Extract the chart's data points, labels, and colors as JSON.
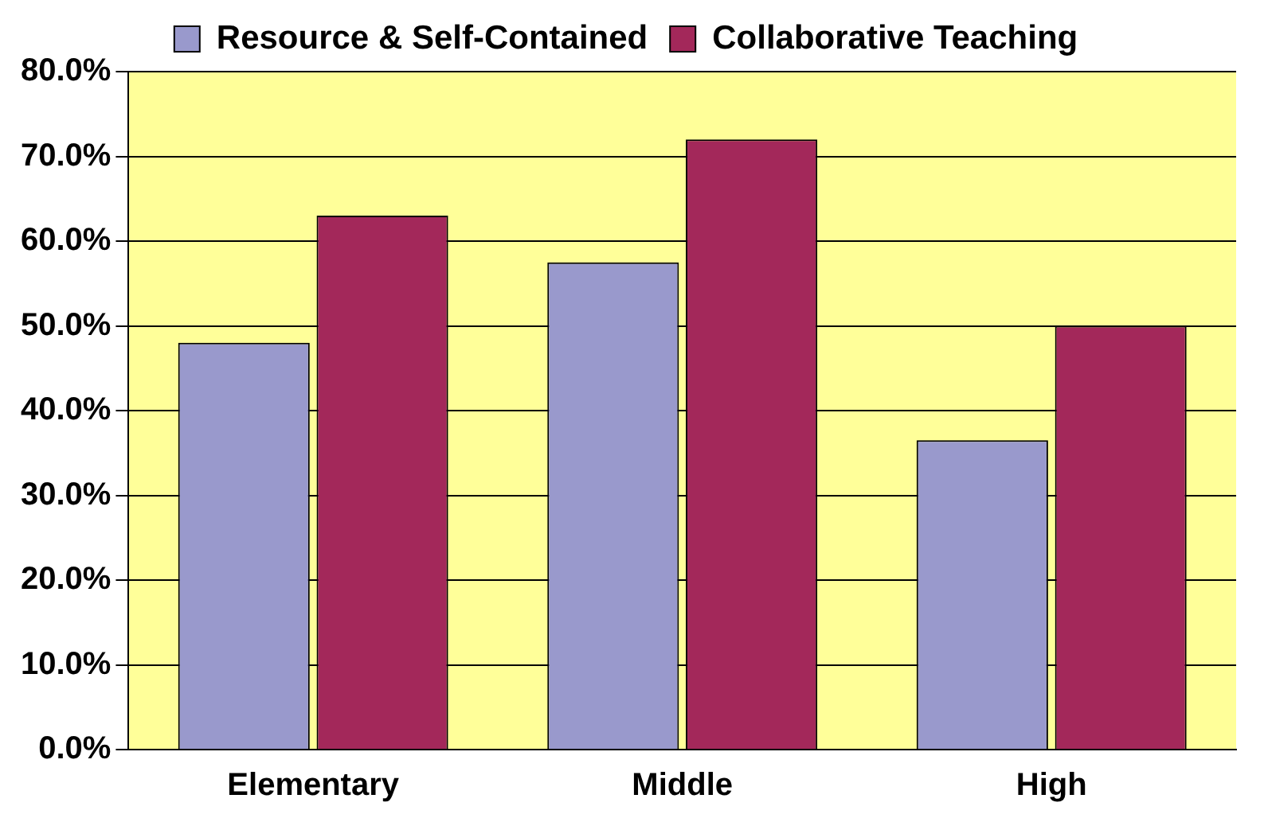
{
  "chart_data": {
    "type": "bar",
    "categories": [
      "Elementary",
      "Middle",
      "High"
    ],
    "series": [
      {
        "name": "Resource & Self-Contained",
        "color": "#9999cc",
        "values": [
          48,
          57.5,
          36.5
        ]
      },
      {
        "name": "Collaborative Teaching",
        "color": "#a3285a",
        "values": [
          63,
          72,
          50
        ]
      }
    ],
    "ylim": [
      0,
      80
    ],
    "yticks": [
      {
        "value": 0,
        "label": "0.0%"
      },
      {
        "value": 10,
        "label": "10.0%"
      },
      {
        "value": 20,
        "label": "20.0%"
      },
      {
        "value": 30,
        "label": "30.0%"
      },
      {
        "value": 40,
        "label": "40.0%"
      },
      {
        "value": 50,
        "label": "50.0%"
      },
      {
        "value": 60,
        "label": "60.0%"
      },
      {
        "value": 70,
        "label": "70.0%"
      },
      {
        "value": 80,
        "label": "80.0%"
      }
    ],
    "grid": "y",
    "legend": "top"
  }
}
